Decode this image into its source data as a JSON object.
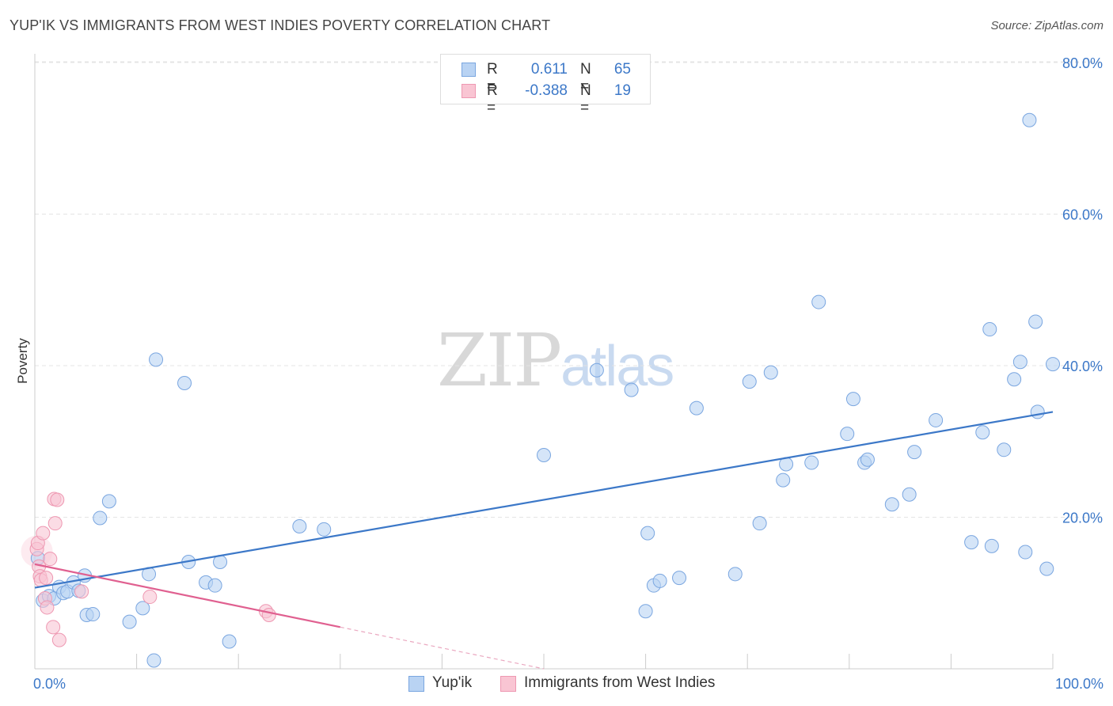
{
  "header": {
    "title": "YUP'IK VS IMMIGRANTS FROM WEST INDIES POVERTY CORRELATION CHART",
    "source": "Source: ZipAtlas.com"
  },
  "watermark": {
    "zip": "ZIP",
    "atlas": "atlas"
  },
  "legend": {
    "rows": [
      {
        "r_label": "R =",
        "r_value": "0.611",
        "n_label": "N =",
        "n_value": "65",
        "fill": "#b9d3f3",
        "stroke": "#7aa6e0"
      },
      {
        "r_label": "R =",
        "r_value": "-0.388",
        "n_label": "N =",
        "n_value": "19",
        "fill": "#f9c5d3",
        "stroke": "#ee98b2"
      }
    ]
  },
  "bottom_legend": {
    "items": [
      {
        "label": "Yup'ik",
        "fill": "#b9d3f3",
        "stroke": "#7aa6e0"
      },
      {
        "label": "Immigrants from West Indies",
        "fill": "#f9c5d3",
        "stroke": "#ee98b2"
      }
    ]
  },
  "chart_data": {
    "type": "scatter",
    "title": "YUP'IK VS IMMIGRANTS FROM WEST INDIES POVERTY CORRELATION CHART",
    "xlabel": "",
    "ylabel": "Poverty",
    "xlim": [
      0,
      100
    ],
    "ylim": [
      0,
      80
    ],
    "x_tick_labels": [
      "0.0%",
      "100.0%"
    ],
    "y_ticks": [
      20,
      40,
      60,
      80
    ],
    "y_tick_labels": [
      "20.0%",
      "40.0%",
      "60.0%",
      "80.0%"
    ],
    "grid": true,
    "colors": {
      "yupik": "#3c78c8",
      "west_indies": "#e06090",
      "grid": "#e4e4e4"
    },
    "series": [
      {
        "name": "Yup'ik",
        "marker_fill": "#b9d3f3",
        "marker_stroke": "#7aa6e0",
        "points": [
          [
            0.3,
            14.6
          ],
          [
            0.8,
            9.0
          ],
          [
            1.4,
            9.6
          ],
          [
            1.9,
            9.3
          ],
          [
            2.4,
            10.8
          ],
          [
            2.8,
            10.0
          ],
          [
            3.2,
            10.2
          ],
          [
            3.8,
            11.4
          ],
          [
            4.3,
            10.3
          ],
          [
            4.9,
            12.3
          ],
          [
            5.1,
            7.1
          ],
          [
            5.7,
            7.2
          ],
          [
            6.4,
            19.9
          ],
          [
            7.3,
            22.1
          ],
          [
            9.3,
            6.2
          ],
          [
            10.6,
            8.0
          ],
          [
            11.2,
            12.5
          ],
          [
            11.7,
            1.1
          ],
          [
            11.9,
            40.8
          ],
          [
            14.7,
            37.7
          ],
          [
            15.1,
            14.1
          ],
          [
            16.8,
            11.4
          ],
          [
            17.7,
            11.0
          ],
          [
            18.2,
            14.1
          ],
          [
            19.1,
            3.6
          ],
          [
            26.0,
            18.8
          ],
          [
            28.4,
            18.4
          ],
          [
            50.0,
            28.2
          ],
          [
            55.2,
            39.4
          ],
          [
            58.6,
            36.8
          ],
          [
            60.0,
            7.6
          ],
          [
            60.2,
            17.9
          ],
          [
            60.8,
            11.0
          ],
          [
            61.4,
            11.6
          ],
          [
            63.3,
            12.0
          ],
          [
            65.0,
            34.4
          ],
          [
            68.8,
            12.5
          ],
          [
            70.2,
            37.9
          ],
          [
            71.2,
            19.2
          ],
          [
            72.3,
            39.1
          ],
          [
            73.5,
            24.9
          ],
          [
            73.8,
            27.0
          ],
          [
            76.3,
            27.2
          ],
          [
            77.0,
            48.4
          ],
          [
            79.8,
            31.0
          ],
          [
            80.4,
            35.6
          ],
          [
            81.5,
            27.2
          ],
          [
            81.8,
            27.6
          ],
          [
            84.2,
            21.7
          ],
          [
            85.9,
            23.0
          ],
          [
            86.4,
            28.6
          ],
          [
            88.5,
            32.8
          ],
          [
            92.0,
            16.7
          ],
          [
            93.1,
            31.2
          ],
          [
            93.8,
            44.8
          ],
          [
            94.0,
            16.2
          ],
          [
            95.2,
            28.9
          ],
          [
            96.2,
            38.2
          ],
          [
            96.8,
            40.5
          ],
          [
            97.3,
            15.4
          ],
          [
            97.7,
            72.4
          ],
          [
            98.3,
            45.8
          ],
          [
            98.5,
            33.9
          ],
          [
            99.4,
            13.2
          ],
          [
            100.0,
            40.2
          ]
        ],
        "trend": {
          "x": [
            0,
            100
          ],
          "y": [
            10.7,
            33.9
          ]
        }
      },
      {
        "name": "Immigrants from West Indies",
        "marker_fill": "#f9c5d3",
        "marker_stroke": "#ee98b2",
        "points": [
          [
            0.2,
            15.8
          ],
          [
            0.3,
            16.6
          ],
          [
            0.4,
            13.5
          ],
          [
            0.5,
            12.2
          ],
          [
            0.6,
            11.7
          ],
          [
            0.8,
            17.9
          ],
          [
            1.0,
            9.3
          ],
          [
            1.1,
            12.0
          ],
          [
            1.2,
            8.1
          ],
          [
            1.5,
            14.5
          ],
          [
            1.8,
            5.5
          ],
          [
            1.9,
            22.4
          ],
          [
            2.0,
            19.2
          ],
          [
            2.2,
            22.3
          ],
          [
            2.4,
            3.8
          ],
          [
            4.6,
            10.2
          ],
          [
            11.3,
            9.5
          ],
          [
            22.7,
            7.6
          ],
          [
            23.0,
            7.1
          ]
        ],
        "trend": {
          "x": [
            0,
            30
          ],
          "y": [
            13.8,
            5.5
          ]
        },
        "trend_dashed": {
          "x": [
            30,
            50
          ],
          "y": [
            5.5,
            0.0
          ]
        }
      }
    ]
  }
}
